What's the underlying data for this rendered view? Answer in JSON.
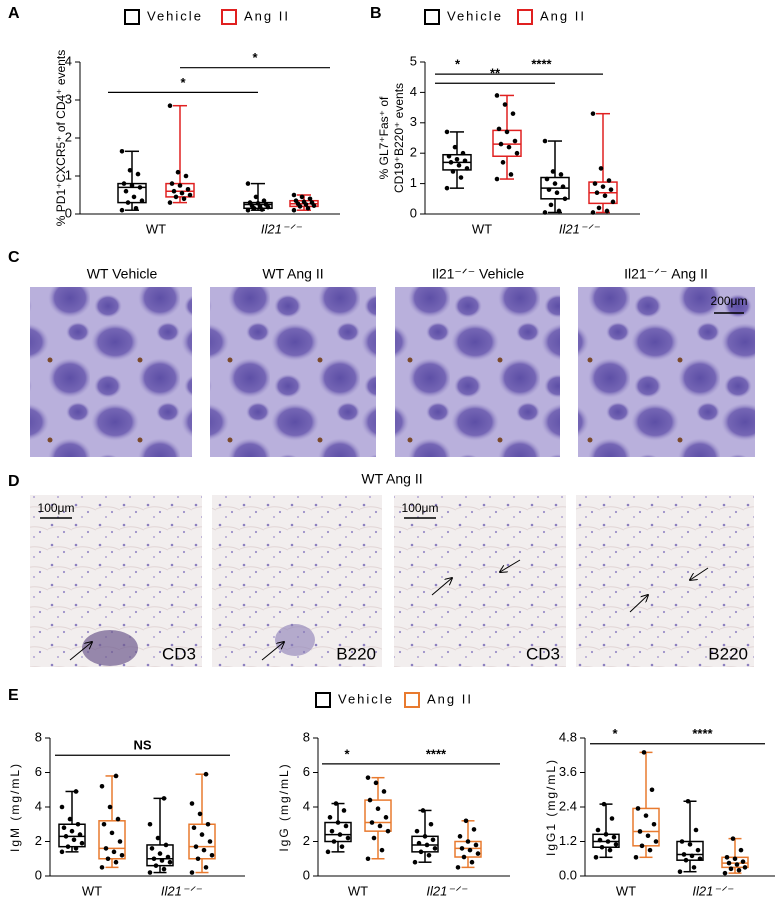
{
  "chart_data": [
    {
      "type": "box",
      "panel": "A",
      "y_label": [
        "% PD1⁺CXCR5⁺ of CD4⁺ events"
      ],
      "categories": [
        "WT",
        "Il21⁻ᐟ⁻"
      ],
      "ylim": [
        0,
        4
      ],
      "yticks": [
        0,
        1,
        2,
        3,
        4
      ],
      "series": [
        {
          "name": "Vehicle",
          "color": "#000000",
          "boxes": [
            {
              "min": 0.1,
              "q1": 0.3,
              "median": 0.7,
              "q3": 0.8,
              "max": 1.65,
              "points": [
                0.1,
                0.15,
                0.3,
                0.35,
                0.45,
                0.6,
                0.7,
                0.75,
                0.8,
                1.05,
                1.15,
                1.65
              ]
            },
            {
              "min": 0.1,
              "q1": 0.15,
              "median": 0.25,
              "q3": 0.3,
              "max": 0.8,
              "points": [
                0.1,
                0.12,
                0.15,
                0.18,
                0.2,
                0.22,
                0.25,
                0.28,
                0.3,
                0.35,
                0.45,
                0.8
              ]
            }
          ]
        },
        {
          "name": "Ang II",
          "color": "#e02020",
          "boxes": [
            {
              "min": 0.3,
              "q1": 0.45,
              "median": 0.6,
              "q3": 0.8,
              "max": 2.85,
              "points": [
                0.3,
                0.4,
                0.45,
                0.5,
                0.55,
                0.6,
                0.65,
                0.75,
                0.8,
                1.0,
                1.1,
                2.85
              ]
            },
            {
              "min": 0.1,
              "q1": 0.2,
              "median": 0.27,
              "q3": 0.35,
              "max": 0.5,
              "points": [
                0.1,
                0.15,
                0.2,
                0.22,
                0.25,
                0.27,
                0.3,
                0.32,
                0.35,
                0.4,
                0.45,
                0.5
              ]
            }
          ]
        }
      ],
      "significance": [
        {
          "label": "*",
          "y": 3.2
        },
        {
          "label": "*",
          "y": 3.85
        }
      ]
    },
    {
      "type": "box",
      "panel": "B",
      "y_label": [
        "% GL7⁺Fas⁺ of",
        "CD19⁺B220⁺ events"
      ],
      "categories": [
        "WT",
        "Il21⁻ᐟ⁻"
      ],
      "ylim": [
        0,
        5
      ],
      "yticks": [
        0,
        1,
        2,
        3,
        4,
        5
      ],
      "series": [
        {
          "name": "Vehicle",
          "color": "#000000",
          "boxes": [
            {
              "min": 0.85,
              "q1": 1.45,
              "median": 1.7,
              "q3": 1.95,
              "max": 2.7,
              "points": [
                0.85,
                1.2,
                1.4,
                1.5,
                1.6,
                1.7,
                1.75,
                1.8,
                1.9,
                2.0,
                2.2,
                2.7
              ]
            },
            {
              "min": 0.05,
              "q1": 0.5,
              "median": 0.85,
              "q3": 1.2,
              "max": 2.4,
              "points": [
                0.05,
                0.1,
                0.3,
                0.5,
                0.7,
                0.8,
                0.9,
                1.0,
                1.15,
                1.3,
                1.4,
                2.4
              ]
            }
          ]
        },
        {
          "name": "Ang II",
          "color": "#e02020",
          "boxes": [
            {
              "min": 1.15,
              "q1": 1.9,
              "median": 2.3,
              "q3": 2.75,
              "max": 3.9,
              "points": [
                1.15,
                1.3,
                1.7,
                2.0,
                2.2,
                2.3,
                2.4,
                2.7,
                2.8,
                3.3,
                3.6,
                3.9
              ]
            },
            {
              "min": 0.05,
              "q1": 0.35,
              "median": 0.7,
              "q3": 1.05,
              "max": 3.3,
              "points": [
                0.05,
                0.1,
                0.2,
                0.4,
                0.6,
                0.7,
                0.8,
                0.9,
                1.0,
                1.1,
                1.5,
                3.3
              ]
            }
          ]
        }
      ],
      "significance": [
        {
          "label": "*",
          "y": 4.6
        },
        {
          "label": "****",
          "y": 4.6
        },
        {
          "label": "**",
          "y": 4.3
        }
      ]
    },
    {
      "type": "box",
      "panel": "E",
      "y_label": [
        "IgM (mg/mL)"
      ],
      "categories": [
        "WT",
        "Il21⁻ᐟ⁻"
      ],
      "ylim": [
        0,
        8
      ],
      "yticks": [
        0,
        2,
        4,
        6,
        8
      ],
      "series": [
        {
          "name": "Vehicle",
          "color": "#000000",
          "boxes": [
            {
              "min": 1.4,
              "q1": 1.7,
              "median": 2.3,
              "q3": 3.0,
              "max": 4.9,
              "points": [
                1.4,
                1.6,
                1.7,
                1.9,
                2.1,
                2.3,
                2.4,
                2.6,
                2.8,
                3.0,
                3.3,
                4.0,
                4.9
              ]
            },
            {
              "min": 0.2,
              "q1": 0.6,
              "median": 1.0,
              "q3": 1.8,
              "max": 4.5,
              "points": [
                0.2,
                0.4,
                0.6,
                0.8,
                0.9,
                1.0,
                1.1,
                1.3,
                1.6,
                1.8,
                2.2,
                3.0,
                4.5
              ]
            }
          ]
        },
        {
          "name": "Ang II",
          "color": "#e87a2f",
          "boxes": [
            {
              "min": 0.5,
              "q1": 1.0,
              "median": 1.6,
              "q3": 3.2,
              "max": 5.8,
              "points": [
                0.5,
                0.8,
                1.0,
                1.2,
                1.4,
                1.6,
                2.0,
                2.5,
                3.0,
                3.3,
                4.0,
                5.2,
                5.8
              ]
            },
            {
              "min": 0.2,
              "q1": 1.0,
              "median": 1.7,
              "q3": 3.0,
              "max": 5.9,
              "points": [
                0.2,
                0.5,
                1.0,
                1.2,
                1.5,
                1.7,
                2.0,
                2.4,
                2.8,
                3.0,
                3.6,
                4.2,
                5.9
              ]
            }
          ]
        }
      ],
      "significance": [
        {
          "label": "NS",
          "y": 7
        }
      ]
    },
    {
      "type": "box",
      "panel": "",
      "y_label": [
        "IgG (mg/mL)"
      ],
      "categories": [
        "WT",
        "Il21⁻ᐟ⁻"
      ],
      "ylim": [
        0,
        8
      ],
      "yticks": [
        0,
        2,
        4,
        6,
        8
      ],
      "series": [
        {
          "color": "#000000",
          "boxes": [
            {
              "min": 1.4,
              "q1": 2.0,
              "median": 2.4,
              "q3": 3.1,
              "max": 4.2,
              "points": [
                1.4,
                1.7,
                2.0,
                2.2,
                2.4,
                2.6,
                2.9,
                3.1,
                3.4,
                3.8,
                4.2
              ]
            },
            {
              "min": 0.8,
              "q1": 1.4,
              "median": 1.8,
              "q3": 2.3,
              "max": 3.8,
              "points": [
                0.8,
                1.2,
                1.4,
                1.6,
                1.8,
                1.9,
                2.1,
                2.3,
                2.6,
                3.0,
                3.8
              ]
            }
          ]
        },
        {
          "color": "#e87a2f",
          "boxes": [
            {
              "min": 1.0,
              "q1": 2.6,
              "median": 3.1,
              "q3": 4.4,
              "max": 5.7,
              "points": [
                1.0,
                1.5,
                2.2,
                2.6,
                2.9,
                3.1,
                3.4,
                3.9,
                4.4,
                4.9,
                5.4,
                5.7
              ]
            },
            {
              "min": 0.5,
              "q1": 1.1,
              "median": 1.6,
              "q3": 2.0,
              "max": 3.2,
              "points": [
                0.5,
                0.8,
                1.1,
                1.3,
                1.5,
                1.6,
                1.8,
                2.0,
                2.3,
                2.7,
                3.2
              ]
            }
          ]
        }
      ],
      "significance": [
        {
          "label": "*",
          "y": 6.5
        },
        {
          "label": "****",
          "y": 6.5
        }
      ]
    },
    {
      "type": "box",
      "panel": "",
      "y_label": [
        "IgG1 (mg/mL)"
      ],
      "categories": [
        "WT",
        "Il21⁻ᐟ⁻"
      ],
      "ylim": [
        0,
        4.8
      ],
      "yticks": [
        {
          "value": 0,
          "label": "0.0"
        },
        1.2,
        2.4,
        3.6,
        4.8
      ],
      "series": [
        {
          "color": "#000000",
          "boxes": [
            {
              "min": 0.65,
              "q1": 1.0,
              "median": 1.2,
              "q3": 1.45,
              "max": 2.5,
              "points": [
                0.65,
                0.9,
                1.0,
                1.1,
                1.2,
                1.25,
                1.35,
                1.45,
                1.6,
                2.0,
                2.5
              ]
            },
            {
              "min": 0.15,
              "q1": 0.55,
              "median": 0.75,
              "q3": 1.2,
              "max": 2.6,
              "points": [
                0.15,
                0.3,
                0.55,
                0.6,
                0.7,
                0.75,
                0.9,
                1.1,
                1.2,
                1.6,
                2.6
              ]
            }
          ]
        },
        {
          "color": "#e87a2f",
          "boxes": [
            {
              "min": 0.65,
              "q1": 1.05,
              "median": 1.55,
              "q3": 2.35,
              "max": 4.3,
              "points": [
                0.65,
                0.9,
                1.05,
                1.2,
                1.4,
                1.55,
                1.8,
                2.1,
                2.35,
                3.0,
                4.3
              ]
            },
            {
              "min": 0.1,
              "q1": 0.3,
              "median": 0.45,
              "q3": 0.65,
              "max": 1.3,
              "points": [
                0.1,
                0.2,
                0.25,
                0.3,
                0.4,
                0.45,
                0.5,
                0.6,
                0.65,
                0.9,
                1.3
              ]
            }
          ]
        }
      ],
      "significance": [
        {
          "label": "*",
          "y": 4.6
        },
        {
          "label": "****",
          "y": 4.6
        }
      ]
    }
  ],
  "panel_c": {
    "panel": "C",
    "titles": [
      "WT Vehicle",
      "WT Ang II",
      "Il21⁻ᐟ⁻ Vehicle",
      "Il21⁻ᐟ⁻ Ang II"
    ],
    "scale_bar": "200μm"
  },
  "panel_d": {
    "panel": "D",
    "title": "WT Ang II",
    "stains": [
      "CD3",
      "B220",
      "CD3",
      "B220"
    ],
    "scale_bar": "100μm"
  }
}
